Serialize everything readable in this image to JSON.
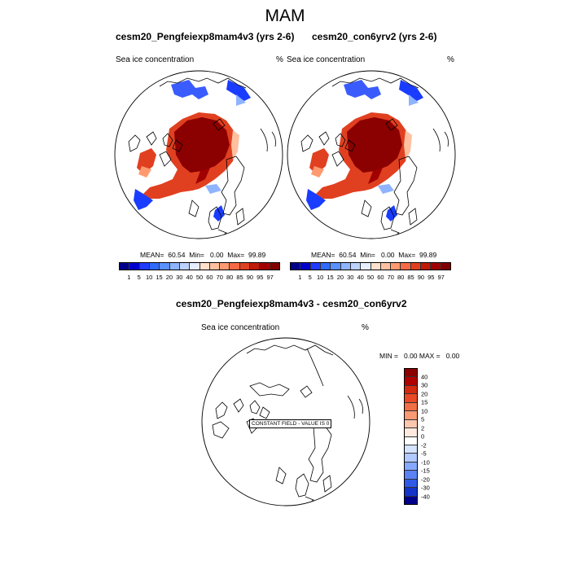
{
  "figure": {
    "title": "MAM",
    "variable": "Sea ice concentration",
    "units": "%"
  },
  "panels": [
    {
      "case": "cesm20_Pengfeiexp8mam4v3 (yrs 2-6)",
      "stats": "MEAN=  60.54  Min=   0.00  Max=  99.89"
    },
    {
      "case": "cesm20_con6yrv2 (yrs 2-6)",
      "stats": "MEAN=  60.54  Min=   0.00  Max=  99.89"
    }
  ],
  "difference": {
    "title": "cesm20_Pengfeiexp8mam4v3 - cesm20_con6yrv2",
    "stats": "MIN =   0.00 MAX =   0.00",
    "constant_field": "CONSTANT FIELD - VALUE IS 0"
  },
  "colorbar_top": {
    "labels": [
      "1",
      "5",
      "10",
      "15",
      "20",
      "30",
      "40",
      "50",
      "60",
      "70",
      "80",
      "85",
      "90",
      "95",
      "97"
    ],
    "colors": [
      "#00008b",
      "#0000cd",
      "#1e3cff",
      "#2f6bff",
      "#5a91ff",
      "#8fb4ff",
      "#bcd2ff",
      "#e6eeff",
      "#ffe0cc",
      "#ffc0a0",
      "#ff9a70",
      "#f56a44",
      "#e04020",
      "#c01a08",
      "#a00000",
      "#800000"
    ]
  },
  "colorbar_diff": {
    "labels": [
      "40",
      "30",
      "20",
      "15",
      "10",
      "5",
      "2",
      "0",
      "-2",
      "-5",
      "-10",
      "-15",
      "-20",
      "-30",
      "-40"
    ],
    "colors": [
      "#8b0000",
      "#b00000",
      "#d42a10",
      "#e84a25",
      "#f26e45",
      "#f99a75",
      "#fdc7ad",
      "#fde9dd",
      "#ffffff",
      "#d5e3ff",
      "#b0c9ff",
      "#86a9ff",
      "#5a82f5",
      "#2f5ae8",
      "#1234c8",
      "#00008b"
    ]
  }
}
